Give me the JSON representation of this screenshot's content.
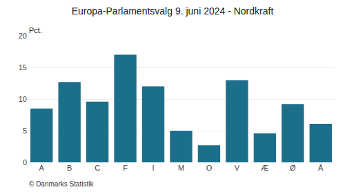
{
  "chart_data": {
    "type": "bar",
    "title": "Europa-Parlamentsvalg 9. juni 2024 - Nordkraft",
    "categories": [
      "A",
      "B",
      "C",
      "F",
      "I",
      "M",
      "O",
      "V",
      "Æ",
      "Ø",
      "Å"
    ],
    "values": [
      8.5,
      12.7,
      9.6,
      17.0,
      12.0,
      5.0,
      2.7,
      13.0,
      4.6,
      9.2,
      6.1
    ],
    "color": "#1c6f8a",
    "ylim": [
      0,
      20
    ],
    "yticks": [
      0,
      5,
      10,
      15,
      20
    ],
    "ylabel": "Pct.",
    "annotations": [
      "© Danmarks Statistik"
    ],
    "grid": true
  }
}
